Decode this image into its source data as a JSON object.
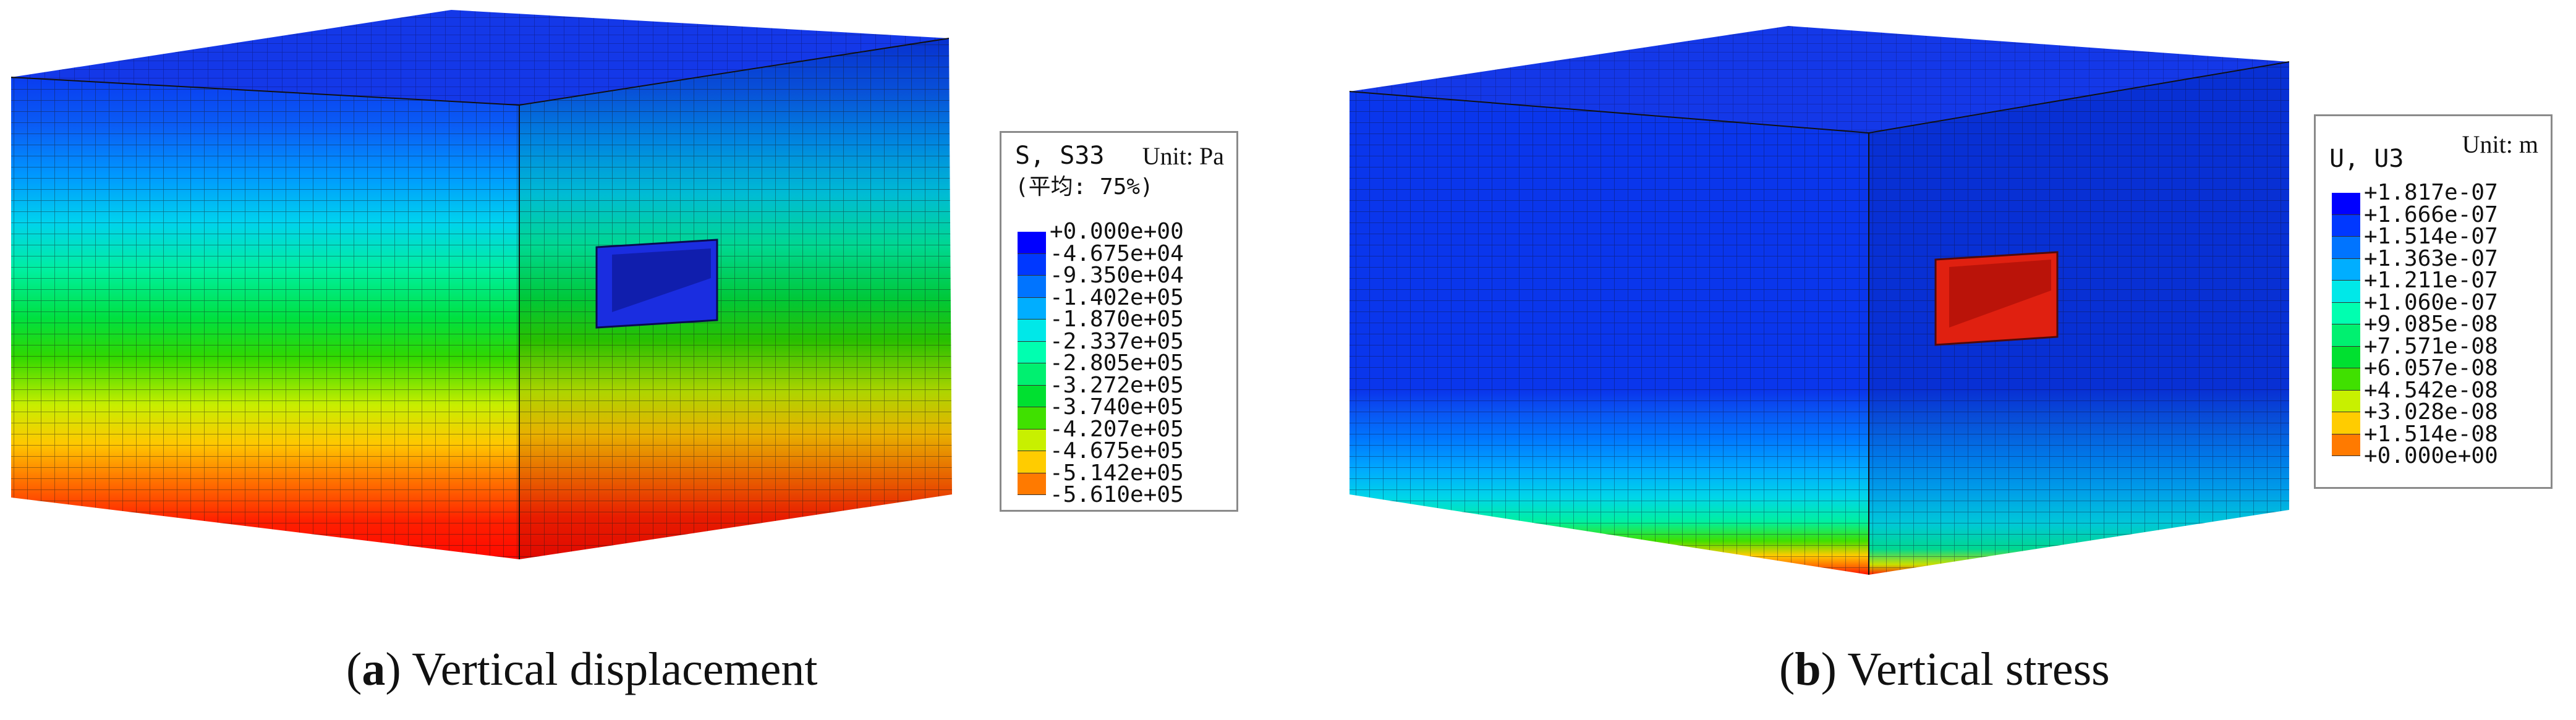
{
  "panels": [
    {
      "id": "a",
      "letter": "a",
      "caption": "Vertical displacement",
      "legend": {
        "title": "S, S33",
        "unit": "Unit: Pa",
        "subtitle": "(平均: 75%)",
        "labels": [
          "+0.000e+00",
          "-4.675e+04",
          "-9.350e+04",
          "-1.402e+05",
          "-1.870e+05",
          "-2.337e+05",
          "-2.805e+05",
          "-3.272e+05",
          "-3.740e+05",
          "-4.207e+05",
          "-4.675e+05",
          "-5.142e+05",
          "-5.610e+05"
        ],
        "colors": [
          "#0000ff",
          "#0038ff",
          "#0074ff",
          "#00aeff",
          "#00e8e8",
          "#00ffb0",
          "#00f070",
          "#00e030",
          "#40e000",
          "#c8f000",
          "#ffcc00",
          "#ff7a00",
          "#ff1a00"
        ]
      },
      "opening_color": "#1a2de0"
    },
    {
      "id": "b",
      "letter": "b",
      "caption": "Vertical stress",
      "legend": {
        "title": "U, U3",
        "unit": "Unit: m",
        "subtitle": "",
        "labels": [
          "+1.817e-07",
          "+1.666e-07",
          "+1.514e-07",
          "+1.363e-07",
          "+1.211e-07",
          "+1.060e-07",
          "+9.085e-08",
          "+7.571e-08",
          "+6.057e-08",
          "+4.542e-08",
          "+3.028e-08",
          "+1.514e-08",
          "+0.000e+00"
        ],
        "colors": [
          "#0000ff",
          "#0038ff",
          "#0074ff",
          "#00aeff",
          "#00e8e8",
          "#00ffb0",
          "#00f070",
          "#00e030",
          "#40e000",
          "#c8f000",
          "#ffcc00",
          "#ff7a00",
          "#ff1a00"
        ]
      },
      "opening_color": "#e02010"
    }
  ]
}
